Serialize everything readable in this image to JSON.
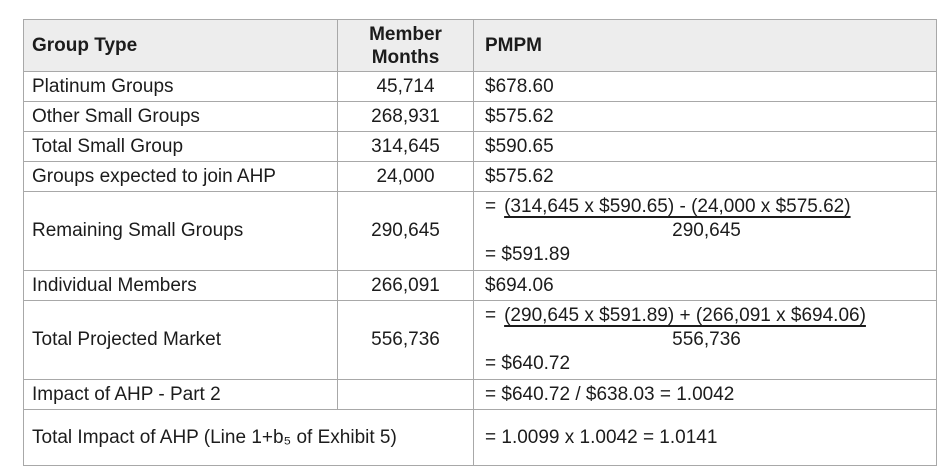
{
  "document": {
    "type": "actuarial-exhibit-table",
    "colors": {
      "header_bg": "#ededed",
      "border": "#a8a8a8",
      "text": "#1c1c1c",
      "cursor_artifact": "#8fbbe3",
      "page_bg": "#ffffff"
    }
  },
  "table": {
    "columns": {
      "group_type": "Group Type",
      "member_months": "Member Months",
      "pmpm": "PMPM"
    },
    "rows": [
      {
        "group": "Platinum Groups",
        "member_months": "45,714",
        "pmpm": "$678.60"
      },
      {
        "group": "Other Small Groups",
        "member_months": "268,931",
        "pmpm": "$575.62"
      },
      {
        "group": "Total Small Group",
        "member_months": "314,645",
        "pmpm": "$590.65"
      },
      {
        "group": "Groups expected to join AHP",
        "member_months": "24,000",
        "pmpm": "$575.62"
      },
      {
        "group": "Remaining Small Groups",
        "member_months": "290,645",
        "formula": {
          "eq": "=",
          "numerator": "(314,645 x $590.65) - (24,000 x $575.62)",
          "denominator": "290,645",
          "result": "= $591.89"
        }
      },
      {
        "group": "Individual Members",
        "member_months": "266,091",
        "pmpm": "$694.06"
      },
      {
        "group": "Total Projected Market",
        "member_months": "556,736",
        "formula": {
          "eq": "=",
          "numerator": "(290,645 x $591.89) + (266,091 x $694.06)",
          "denominator": "556,736",
          "result": "= $640.72"
        }
      },
      {
        "group": "Impact of AHP - Part 2",
        "member_months": "",
        "pmpm": "= $640.72 / $638.03 = 1.0042"
      },
      {
        "group": "Total Impact of AHP (Line 1+b₅ of Exhibit 5)",
        "pmpm": "= 1.0099 x 1.0042 = 1.0141"
      }
    ]
  }
}
